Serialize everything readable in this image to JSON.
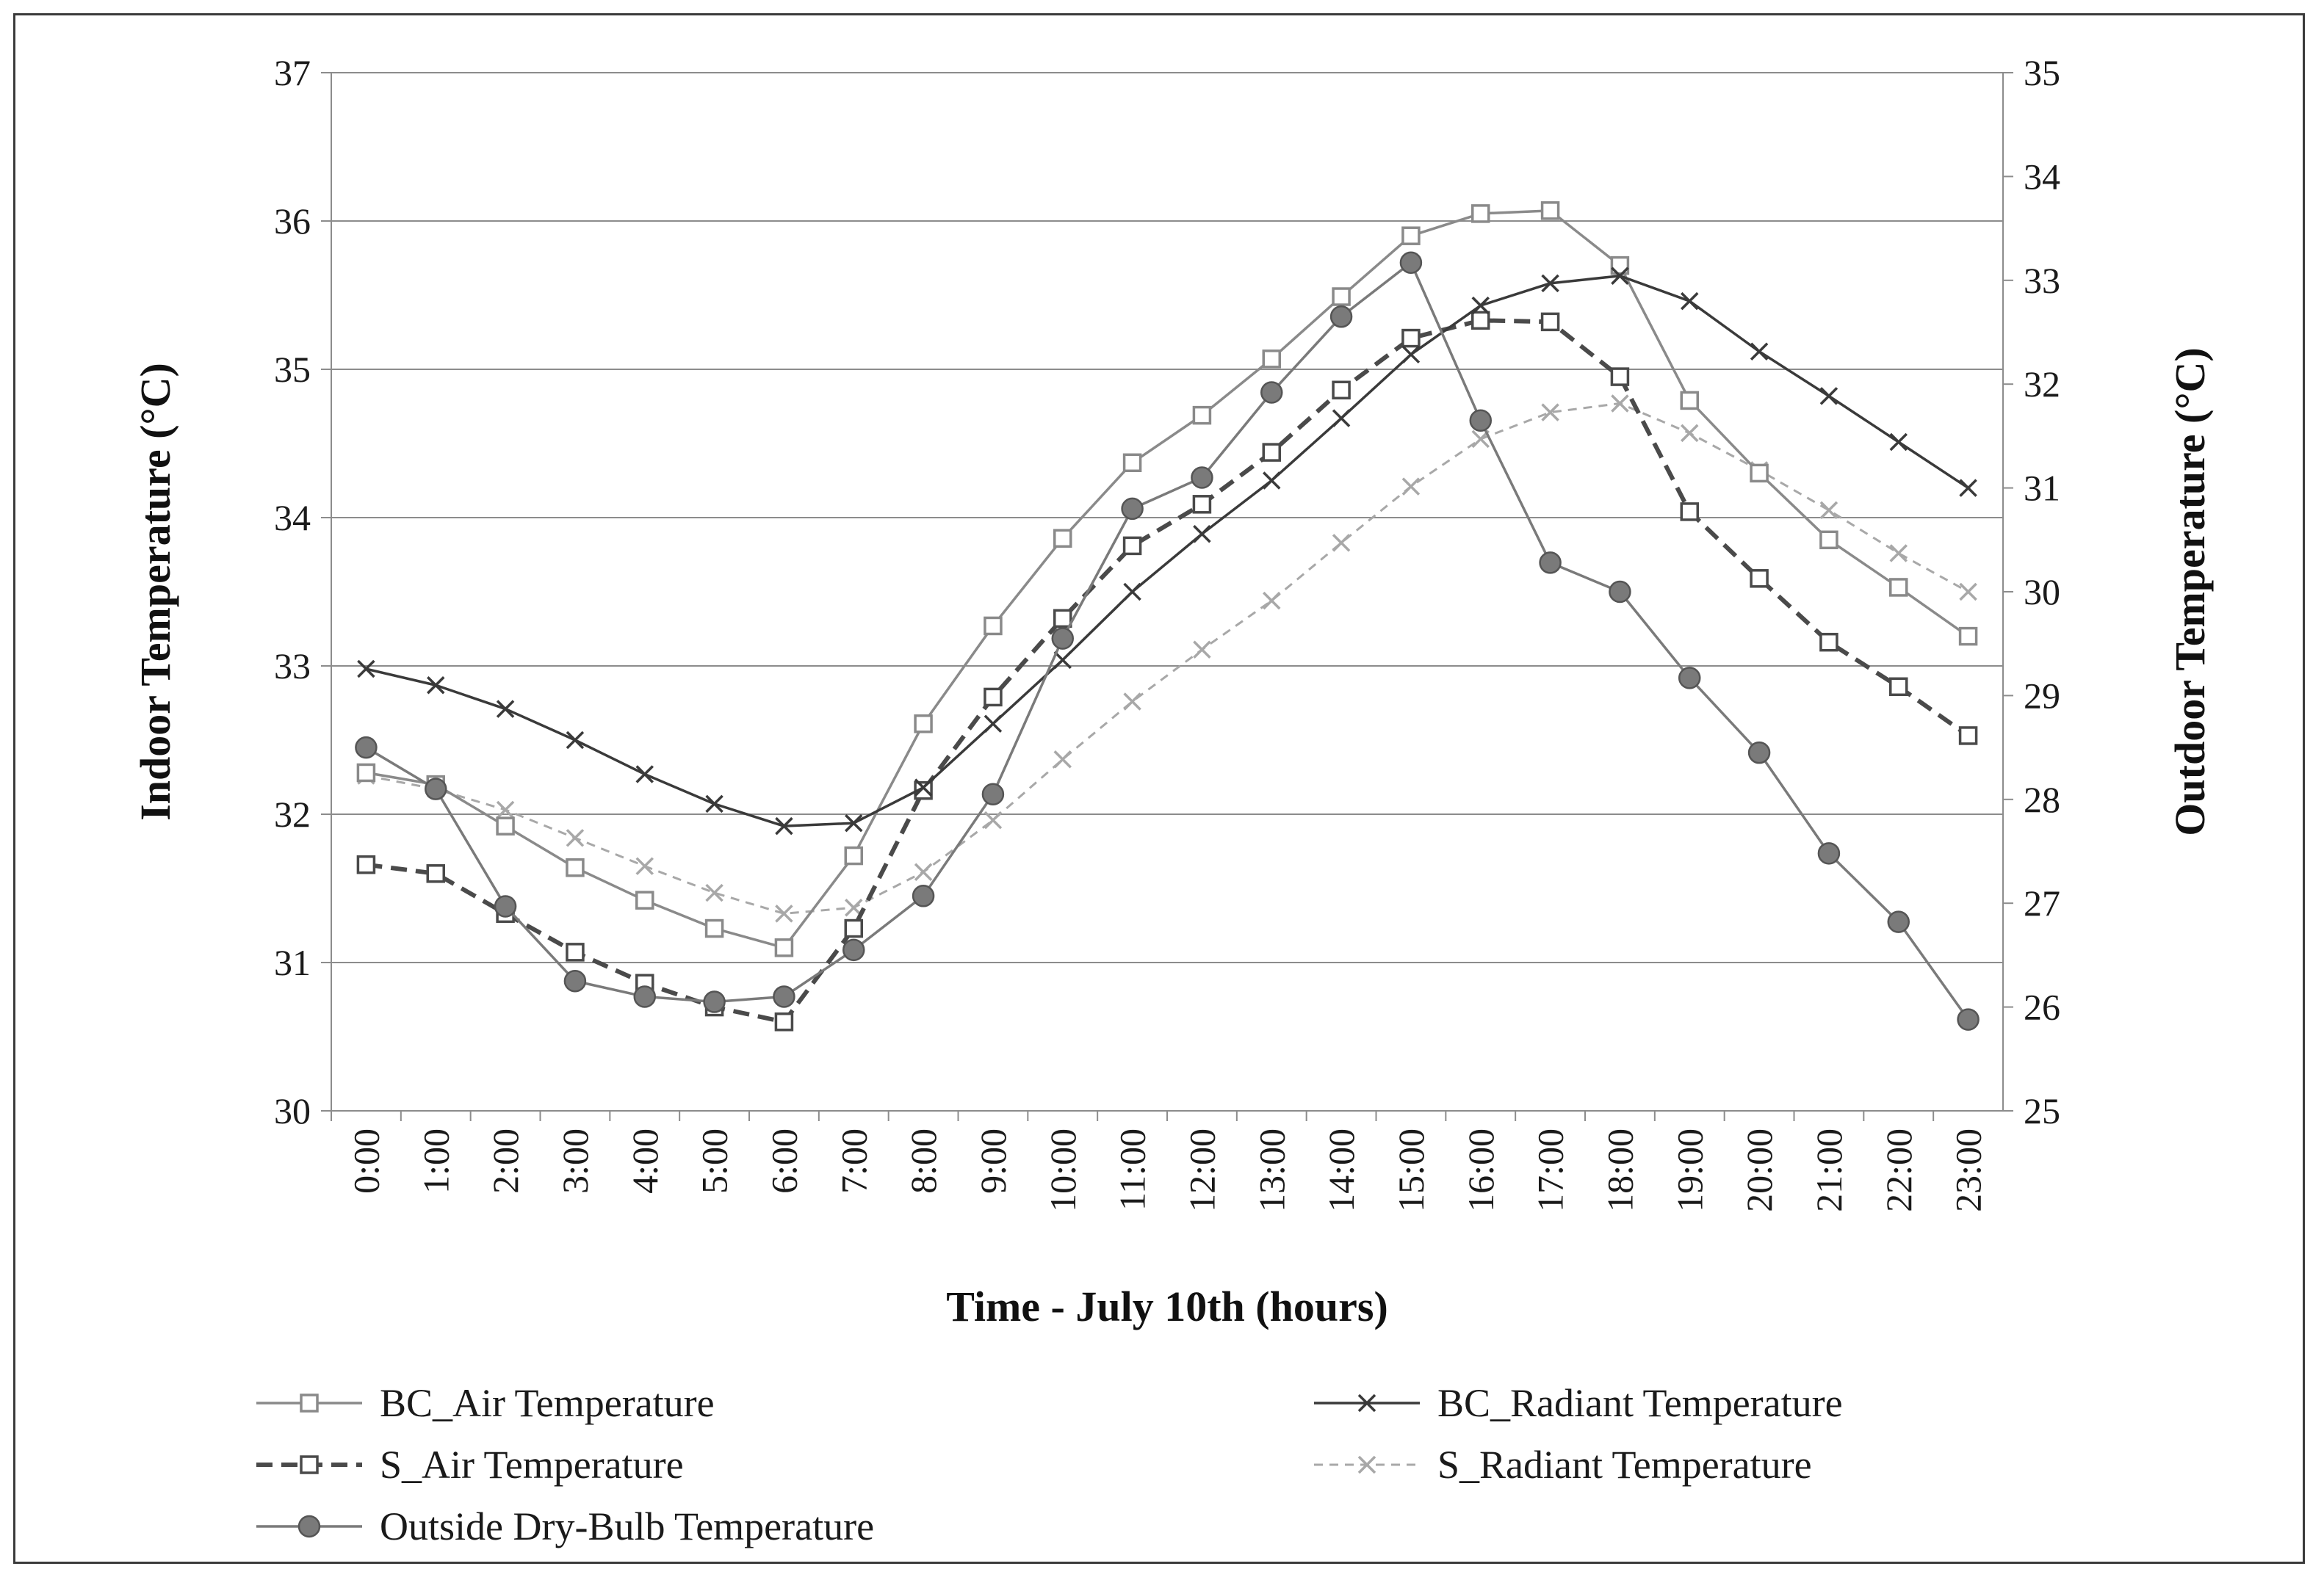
{
  "chart_data": {
    "type": "line",
    "title": "",
    "xlabel": "Time - July 10th  (hours)",
    "ylabel_left": "Indoor Temperature   (°C)",
    "ylabel_right": "Outdoor Temperature  (°C)",
    "ylim_left": [
      30,
      37
    ],
    "ylim_right": [
      25,
      35
    ],
    "yticks_left": [
      "30",
      "31",
      "32",
      "33",
      "34",
      "35",
      "36",
      "37"
    ],
    "yticks_right": [
      "25",
      "26",
      "27",
      "28",
      "29",
      "30",
      "31",
      "32",
      "33",
      "34",
      "35"
    ],
    "grid": true,
    "legend_position": "bottom",
    "categories": [
      "0:00",
      "1:00",
      "2:00",
      "3:00",
      "4:00",
      "5:00",
      "6:00",
      "7:00",
      "8:00",
      "9:00",
      "10:00",
      "11:00",
      "12:00",
      "13:00",
      "14:00",
      "15:00",
      "16:00",
      "17:00",
      "18:00",
      "19:00",
      "20:00",
      "21:00",
      "22:00",
      "23:00"
    ],
    "series": [
      {
        "name": "BC_Air Temperature",
        "axis": "left",
        "marker": "square",
        "line_style": "solid",
        "color": "#8a8a8a",
        "values": [
          32.28,
          32.2,
          31.92,
          31.64,
          31.42,
          31.23,
          31.1,
          31.72,
          32.61,
          33.27,
          33.86,
          34.37,
          34.69,
          35.07,
          35.49,
          35.9,
          36.05,
          36.07,
          35.7,
          34.79,
          34.3,
          33.85,
          33.53,
          33.2
        ]
      },
      {
        "name": "BC_Radiant Temperature",
        "axis": "left",
        "marker": "x",
        "line_style": "solid",
        "color": "#3a3a3a",
        "values": [
          32.98,
          32.87,
          32.71,
          32.5,
          32.27,
          32.07,
          31.92,
          31.94,
          32.18,
          32.61,
          33.04,
          33.5,
          33.89,
          34.25,
          34.67,
          35.1,
          35.43,
          35.58,
          35.63,
          35.46,
          35.12,
          34.82,
          34.51,
          34.2
        ]
      },
      {
        "name": "S_Air Temperature",
        "axis": "left",
        "marker": "square",
        "line_style": "dashed",
        "color": "#4a4a4a",
        "values": [
          31.66,
          31.6,
          31.33,
          31.07,
          30.86,
          30.7,
          30.6,
          31.23,
          32.16,
          32.79,
          33.32,
          33.81,
          34.09,
          34.44,
          34.86,
          35.21,
          35.33,
          35.32,
          34.95,
          34.04,
          33.59,
          33.16,
          32.86,
          32.53
        ]
      },
      {
        "name": "S_Radiant Temperature",
        "axis": "left",
        "marker": "x",
        "line_style": "dotted",
        "color": "#a8a8a8",
        "values": [
          32.26,
          32.17,
          32.03,
          31.84,
          31.65,
          31.47,
          31.33,
          31.37,
          31.61,
          31.96,
          32.37,
          32.76,
          33.11,
          33.44,
          33.83,
          34.21,
          34.53,
          34.71,
          34.77,
          34.57,
          34.32,
          34.05,
          33.76,
          33.5
        ]
      },
      {
        "name": "Outside Dry-Bulb Temperature",
        "axis": "right",
        "marker": "circle",
        "line_style": "solid",
        "color": "#7a7a7a",
        "values": [
          28.5,
          28.1,
          26.97,
          26.25,
          26.1,
          26.05,
          26.1,
          26.55,
          27.07,
          28.05,
          29.55,
          30.8,
          31.1,
          31.92,
          32.65,
          33.17,
          31.65,
          30.28,
          30.0,
          29.17,
          28.45,
          27.48,
          26.82,
          25.88
        ]
      }
    ]
  }
}
